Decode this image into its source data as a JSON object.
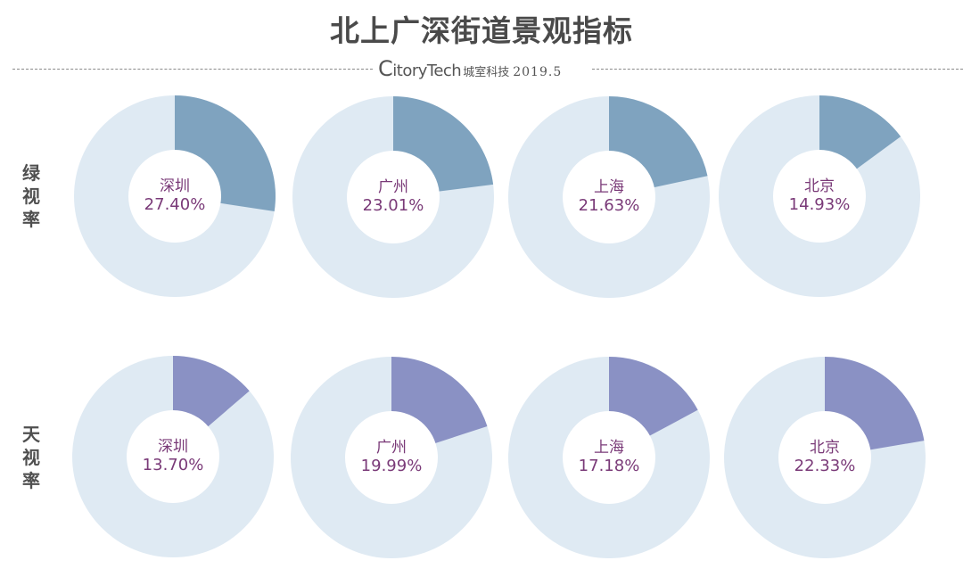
{
  "header": {
    "title": "北上广深街道景观指标",
    "brand_initial": "C",
    "brand_rest": "itoryTech",
    "org": "城室科技",
    "date": "2019.5"
  },
  "rows": [
    {
      "label_chars": [
        "绿",
        "视",
        "率"
      ],
      "color": "#7fa3bf",
      "items": [
        {
          "city": "深圳",
          "value_label": "27.40%",
          "value": 27.4
        },
        {
          "city": "广州",
          "value_label": "23.01%",
          "value": 23.01
        },
        {
          "city": "上海",
          "value_label": "21.63%",
          "value": 21.63
        },
        {
          "city": "北京",
          "value_label": "14.93%",
          "value": 14.93
        }
      ]
    },
    {
      "label_chars": [
        "天",
        "视",
        "率"
      ],
      "color": "#8a91c4",
      "items": [
        {
          "city": "深圳",
          "value_label": "13.70%",
          "value": 13.7
        },
        {
          "city": "广州",
          "value_label": "19.99%",
          "value": 19.99
        },
        {
          "city": "上海",
          "value_label": "17.18%",
          "value": 17.18
        },
        {
          "city": "北京",
          "value_label": "22.33%",
          "value": 22.33
        }
      ]
    }
  ],
  "colors": {
    "track": "#dfeaf3",
    "hole": "#ffffff",
    "text": "#7a3a78",
    "title": "#4a4a4a"
  },
  "chart_data": [
    {
      "type": "pie",
      "title": "北上广深街道景观指标 — 绿视率",
      "categories": [
        "深圳",
        "广州",
        "上海",
        "北京"
      ],
      "values": [
        27.4,
        23.01,
        21.63,
        14.93
      ],
      "unit": "%",
      "style": "donut, one per city, remainder to 100%"
    },
    {
      "type": "pie",
      "title": "北上广深街道景观指标 — 天视率",
      "categories": [
        "深圳",
        "广州",
        "上海",
        "北京"
      ],
      "values": [
        13.7,
        19.99,
        17.18,
        22.33
      ],
      "unit": "%",
      "style": "donut, one per city, remainder to 100%"
    }
  ]
}
